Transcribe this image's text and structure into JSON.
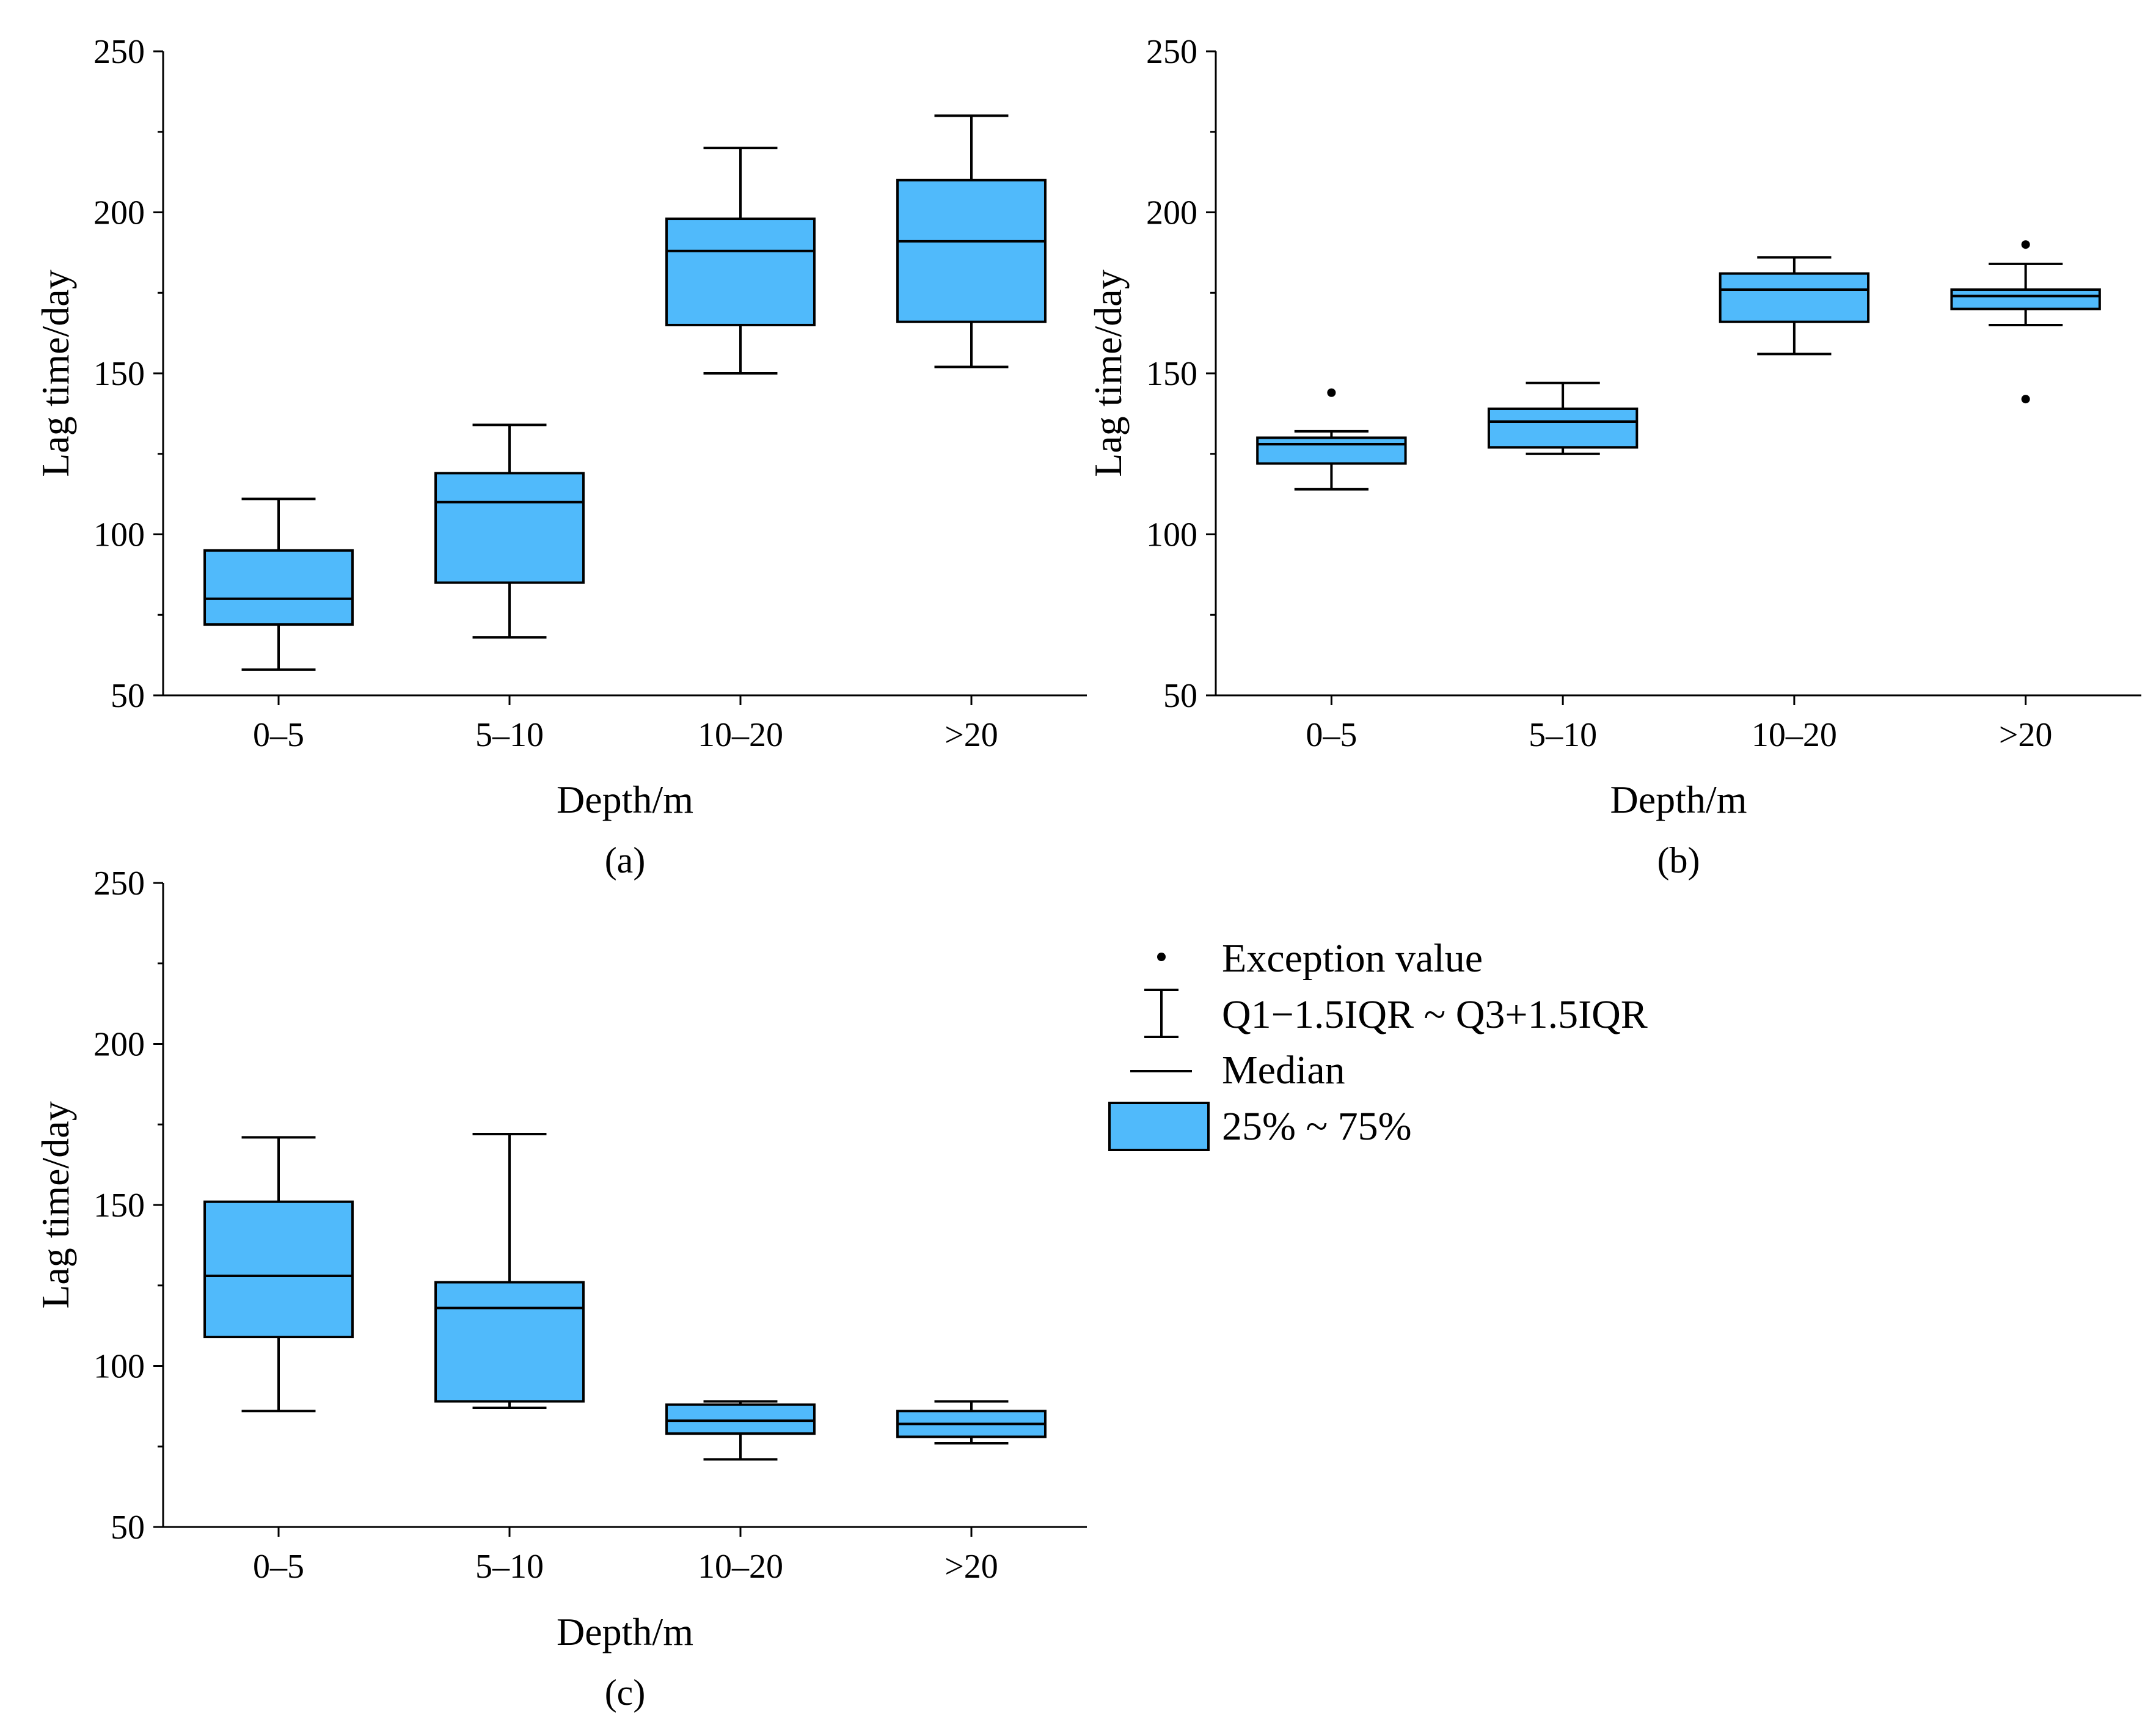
{
  "colors": {
    "box_fill": "#50BAFB",
    "stroke": "#000000",
    "background": "#FFFFFF"
  },
  "legend": {
    "items": [
      {
        "symbol": "dot-icon",
        "label": "Exception value"
      },
      {
        "symbol": "whisker-icon",
        "label": "Q1−1.5IQR ~ Q3+1.5IQR"
      },
      {
        "symbol": "median-line-icon",
        "label": "Median"
      },
      {
        "symbol": "box-swatch-icon",
        "label": "25% ~ 75%"
      }
    ]
  },
  "chart_data": [
    {
      "type": "box",
      "panel_label": "(a)",
      "xlabel": "Depth/m",
      "ylabel": "Lag time/day",
      "ylim": [
        50,
        250
      ],
      "yticks": [
        50,
        100,
        150,
        200,
        250
      ],
      "categories": [
        "0–5",
        "5–10",
        "10–20",
        ">20"
      ],
      "boxes": [
        {
          "whisker_low": 58,
          "q1": 72,
          "median": 80,
          "q3": 95,
          "whisker_high": 111,
          "outliers": []
        },
        {
          "whisker_low": 68,
          "q1": 85,
          "median": 110,
          "q3": 119,
          "whisker_high": 134,
          "outliers": []
        },
        {
          "whisker_low": 150,
          "q1": 165,
          "median": 188,
          "q3": 198,
          "whisker_high": 220,
          "outliers": []
        },
        {
          "whisker_low": 152,
          "q1": 166,
          "median": 191,
          "q3": 210,
          "whisker_high": 230,
          "outliers": []
        }
      ]
    },
    {
      "type": "box",
      "panel_label": "(b)",
      "xlabel": "Depth/m",
      "ylabel": "Lag time/day",
      "ylim": [
        50,
        250
      ],
      "yticks": [
        50,
        100,
        150,
        200,
        250
      ],
      "categories": [
        "0–5",
        "5–10",
        "10–20",
        ">20"
      ],
      "boxes": [
        {
          "whisker_low": 114,
          "q1": 122,
          "median": 128,
          "q3": 130,
          "whisker_high": 132,
          "outliers": [
            144
          ]
        },
        {
          "whisker_low": 125,
          "q1": 127,
          "median": 135,
          "q3": 139,
          "whisker_high": 147,
          "outliers": []
        },
        {
          "whisker_low": 156,
          "q1": 166,
          "median": 176,
          "q3": 181,
          "whisker_high": 186,
          "outliers": []
        },
        {
          "whisker_low": 165,
          "q1": 170,
          "median": 174,
          "q3": 176,
          "whisker_high": 184,
          "outliers": [
            190,
            142
          ]
        }
      ]
    },
    {
      "type": "box",
      "panel_label": "(c)",
      "xlabel": "Depth/m",
      "ylabel": "Lag time/day",
      "ylim": [
        50,
        250
      ],
      "yticks": [
        50,
        100,
        150,
        200,
        250
      ],
      "categories": [
        "0–5",
        "5–10",
        "10–20",
        ">20"
      ],
      "boxes": [
        {
          "whisker_low": 86,
          "q1": 109,
          "median": 128,
          "q3": 151,
          "whisker_high": 171,
          "outliers": []
        },
        {
          "whisker_low": 87,
          "q1": 89,
          "median": 118,
          "q3": 126,
          "whisker_high": 172,
          "outliers": []
        },
        {
          "whisker_low": 71,
          "q1": 79,
          "median": 83,
          "q3": 88,
          "whisker_high": 89,
          "outliers": []
        },
        {
          "whisker_low": 76,
          "q1": 78,
          "median": 82,
          "q3": 86,
          "whisker_high": 89,
          "outliers": []
        }
      ]
    }
  ]
}
